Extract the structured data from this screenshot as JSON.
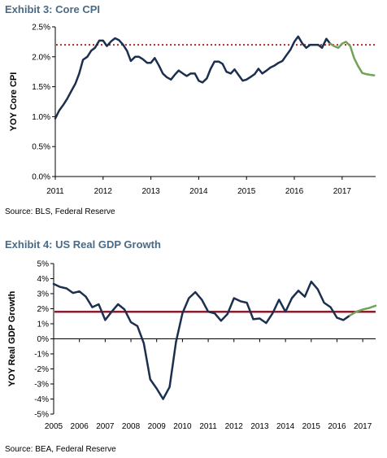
{
  "colors": {
    "title": "#4a6a86",
    "actual": "#1c2f4f",
    "forecast": "#6fa35a",
    "cpi_reference": "#b52a2a",
    "gdp_reference": "#8b1e2e",
    "axis": "#000000"
  },
  "chart_data": [
    {
      "type": "line",
      "title": "Exhibit 3: Core CPI",
      "ylabel": "YOY Core CPI",
      "xlabel": "",
      "source": "Source: BLS, Federal Reserve",
      "x_ticks": [
        "2011",
        "2012",
        "2013",
        "2014",
        "2015",
        "2016",
        "2017"
      ],
      "y_ticks": [
        "0.0%",
        "0.5%",
        "1.0%",
        "1.5%",
        "2.0%",
        "2.5%"
      ],
      "xlim": [
        2011.0,
        2017.7
      ],
      "ylim": [
        0.0,
        2.5
      ],
      "grid": false,
      "reference_line": {
        "value": 2.2,
        "style": "dotted"
      },
      "series": [
        {
          "style": "actual",
          "x": [
            2011.0,
            2011.08,
            2011.17,
            2011.25,
            2011.33,
            2011.42,
            2011.5,
            2011.58,
            2011.67,
            2011.75,
            2011.83,
            2011.92,
            2012.0,
            2012.08,
            2012.17,
            2012.25,
            2012.33,
            2012.42,
            2012.5,
            2012.58,
            2012.67,
            2012.75,
            2012.83,
            2012.92,
            2013.0,
            2013.08,
            2013.17,
            2013.25,
            2013.33,
            2013.42,
            2013.5,
            2013.58,
            2013.67,
            2013.75,
            2013.83,
            2013.92,
            2014.0,
            2014.08,
            2014.17,
            2014.25,
            2014.33,
            2014.42,
            2014.5,
            2014.58,
            2014.67,
            2014.75,
            2014.83,
            2014.92,
            2015.0,
            2015.08,
            2015.17,
            2015.25,
            2015.33,
            2015.42,
            2015.5,
            2015.58,
            2015.67,
            2015.75,
            2015.83,
            2015.92,
            2016.0,
            2016.08,
            2016.17,
            2016.25,
            2016.33,
            2016.42,
            2016.5,
            2016.58,
            2016.67,
            2016.75
          ],
          "y": [
            0.97,
            1.1,
            1.2,
            1.3,
            1.42,
            1.55,
            1.72,
            1.95,
            2.0,
            2.1,
            2.15,
            2.27,
            2.27,
            2.18,
            2.26,
            2.31,
            2.28,
            2.2,
            2.1,
            1.93,
            2.0,
            2.0,
            1.96,
            1.9,
            1.9,
            1.98,
            1.85,
            1.72,
            1.66,
            1.62,
            1.7,
            1.77,
            1.72,
            1.68,
            1.72,
            1.72,
            1.6,
            1.57,
            1.64,
            1.8,
            1.92,
            1.92,
            1.88,
            1.75,
            1.72,
            1.79,
            1.7,
            1.6,
            1.62,
            1.66,
            1.71,
            1.8,
            1.72,
            1.77,
            1.82,
            1.85,
            1.9,
            1.93,
            2.02,
            2.12,
            2.25,
            2.34,
            2.22,
            2.15,
            2.2,
            2.2,
            2.2,
            2.15,
            2.3,
            2.22
          ]
        },
        {
          "style": "forecast",
          "x": [
            2016.75,
            2016.83,
            2016.92,
            2017.0,
            2017.08,
            2017.17,
            2017.25,
            2017.33,
            2017.42,
            2017.5,
            2017.58,
            2017.67
          ],
          "y": [
            2.22,
            2.18,
            2.15,
            2.22,
            2.25,
            2.18,
            1.98,
            1.85,
            1.73,
            1.71,
            1.7,
            1.69
          ]
        }
      ]
    },
    {
      "type": "line",
      "title": "Exhibit 4: US Real GDP Growth",
      "ylabel": "YOY Real GDP Growth",
      "xlabel": "",
      "source": "Source: BEA, Federal Reserve",
      "x_ticks": [
        "2005",
        "2006",
        "2007",
        "2008",
        "2009",
        "2010",
        "2011",
        "2012",
        "2013",
        "2014",
        "2015",
        "2016",
        "2017"
      ],
      "y_ticks": [
        "-5%",
        "-4%",
        "-3%",
        "-2%",
        "-1%",
        "0%",
        "1%",
        "2%",
        "3%",
        "4%",
        "5%"
      ],
      "xlim": [
        2005.0,
        2017.5
      ],
      "ylim": [
        -5,
        5
      ],
      "grid": false,
      "reference_line": {
        "value": 1.8,
        "style": "solid"
      },
      "series": [
        {
          "style": "actual",
          "x": [
            2005.0,
            2005.25,
            2005.5,
            2005.75,
            2006.0,
            2006.25,
            2006.5,
            2006.75,
            2007.0,
            2007.25,
            2007.5,
            2007.75,
            2008.0,
            2008.25,
            2008.5,
            2008.75,
            2009.0,
            2009.25,
            2009.5,
            2009.75,
            2010.0,
            2010.25,
            2010.5,
            2010.75,
            2011.0,
            2011.25,
            2011.5,
            2011.75,
            2012.0,
            2012.25,
            2012.5,
            2012.75,
            2013.0,
            2013.25,
            2013.5,
            2013.75,
            2014.0,
            2014.25,
            2014.5,
            2014.75,
            2015.0,
            2015.25,
            2015.5,
            2015.75,
            2016.0,
            2016.25,
            2016.5
          ],
          "y": [
            3.65,
            3.45,
            3.35,
            3.05,
            3.15,
            2.8,
            2.1,
            2.3,
            1.25,
            1.8,
            2.3,
            1.95,
            1.1,
            0.85,
            -0.3,
            -2.7,
            -3.3,
            -4.0,
            -3.2,
            -0.2,
            1.7,
            2.7,
            3.1,
            2.6,
            1.8,
            1.7,
            1.2,
            1.65,
            2.7,
            2.5,
            2.4,
            1.3,
            1.35,
            1.05,
            1.7,
            2.6,
            1.8,
            2.7,
            3.2,
            2.8,
            3.8,
            3.3,
            2.4,
            2.1,
            1.4,
            1.25,
            1.55
          ]
        },
        {
          "style": "forecast",
          "x": [
            2016.5,
            2016.75,
            2017.0,
            2017.25,
            2017.5
          ],
          "y": [
            1.55,
            1.8,
            1.95,
            2.05,
            2.2
          ]
        }
      ]
    }
  ]
}
